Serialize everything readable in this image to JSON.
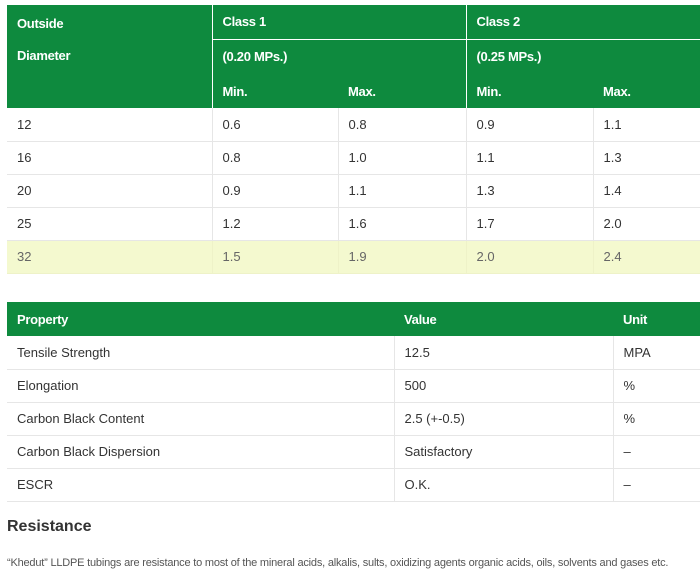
{
  "table1": {
    "header": {
      "diameter_line1": "Outside",
      "diameter_line2": "Diameter",
      "class1": "Class 1",
      "class1_pressure": "(0.20 MPs.)",
      "class2": "Class 2",
      "class2_pressure": "(0.25 MPs.)",
      "min": "Min.",
      "max": "Max."
    },
    "rows": [
      [
        "12",
        "0.6",
        "0.8",
        "0.9",
        "1.1"
      ],
      [
        "16",
        "0.8",
        "1.0",
        "1.1",
        "1.3"
      ],
      [
        "20",
        "0.9",
        "1.1",
        "1.3",
        "1.4"
      ],
      [
        "25",
        "1.2",
        "1.6",
        "1.7",
        "2.0"
      ],
      [
        "32",
        "1.5",
        "1.9",
        "2.0",
        "2.4"
      ]
    ]
  },
  "table2": {
    "header": [
      "Property",
      "Value",
      "Unit"
    ],
    "rows": [
      [
        "Tensile Strength",
        "12.5",
        "MPA"
      ],
      [
        "Elongation",
        "500",
        "%"
      ],
      [
        "Carbon Black Content",
        "2.5 (+-0.5)",
        "%"
      ],
      [
        "Carbon Black Dispersion",
        "Satisfactory",
        "–"
      ],
      [
        "ESCR",
        "O.K.",
        "–"
      ]
    ]
  },
  "resistance": {
    "title": "Resistance",
    "text": "“Khedut” LLDPE tubings are resistance to most of the mineral acids, alkalis, sults, oxidizing agents organic acids, oils, solvents and gases etc."
  },
  "colors": {
    "header_green": "#0e8a3e",
    "highlight_row": "#f4f9cf"
  }
}
